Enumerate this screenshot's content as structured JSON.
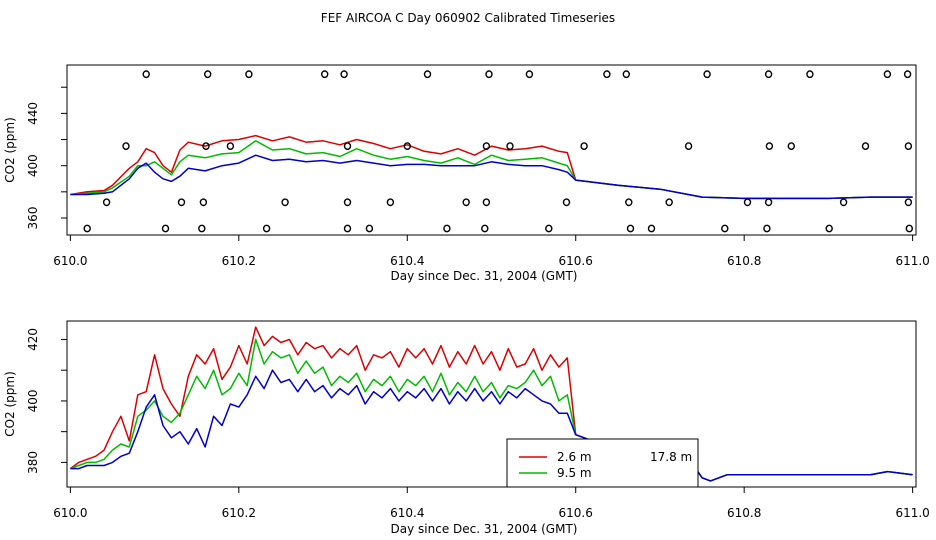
{
  "title": "FEF AIRCOA C  Day 060902  Calibrated Timeseries",
  "colors": {
    "red": "#dd0000",
    "green": "#00bb00",
    "blue": "#0000cc",
    "axis": "#000000"
  },
  "chart_data": [
    {
      "type": "line",
      "name": "top-panel",
      "xlabel": "Day since Dec. 31, 2004 (GMT)",
      "ylabel": "CO2 (ppm)",
      "xlim": [
        609.996,
        611.004
      ],
      "ylim": [
        347,
        477
      ],
      "x_ticks": [
        610.0,
        610.2,
        610.4,
        610.6,
        610.8,
        611.0
      ],
      "x_tick_labels": [
        "610.0",
        "610.2",
        "610.4",
        "610.6",
        "610.8",
        "611.0"
      ],
      "y_ticks": [
        360,
        380,
        400,
        420,
        440,
        460
      ],
      "y_tick_labels": [
        "360",
        "",
        "400",
        "",
        "440",
        ""
      ],
      "series": [
        {
          "name": "2.6 m",
          "color": "red",
          "x": [
            610.0,
            610.02,
            610.04,
            610.05,
            610.07,
            610.08,
            610.09,
            610.1,
            610.11,
            610.12,
            610.13,
            610.14,
            610.16,
            610.18,
            610.2,
            610.22,
            610.24,
            610.26,
            610.28,
            610.3,
            610.32,
            610.34,
            610.36,
            610.38,
            610.4,
            610.42,
            610.44,
            610.46,
            610.48,
            610.5,
            610.52,
            610.54,
            610.56,
            610.58,
            610.59,
            610.6,
            610.65,
            610.7,
            610.75,
            610.8,
            610.85,
            610.9,
            610.95,
            611.0
          ],
          "y": [
            378,
            380,
            381,
            385,
            398,
            403,
            413,
            410,
            400,
            395,
            412,
            418,
            415,
            419,
            420,
            423,
            419,
            422,
            418,
            419,
            416,
            420,
            417,
            413,
            416,
            411,
            409,
            413,
            408,
            415,
            412,
            413,
            415,
            411,
            410,
            389,
            385,
            382,
            376,
            375,
            375,
            375,
            376,
            376
          ]
        },
        {
          "name": "9.5 m",
          "color": "green",
          "x": [
            610.0,
            610.02,
            610.04,
            610.05,
            610.07,
            610.08,
            610.09,
            610.1,
            610.11,
            610.12,
            610.13,
            610.14,
            610.16,
            610.18,
            610.2,
            610.22,
            610.24,
            610.26,
            610.28,
            610.3,
            610.32,
            610.34,
            610.36,
            610.38,
            610.4,
            610.42,
            610.44,
            610.46,
            610.48,
            610.5,
            610.52,
            610.54,
            610.56,
            610.58,
            610.59,
            610.6,
            610.65,
            610.7,
            610.75,
            610.8,
            610.85,
            610.9,
            610.95,
            611.0
          ],
          "y": [
            378,
            379,
            380,
            383,
            392,
            400,
            400,
            403,
            398,
            393,
            403,
            408,
            406,
            409,
            410,
            419,
            412,
            413,
            409,
            410,
            407,
            413,
            408,
            405,
            407,
            404,
            402,
            406,
            401,
            408,
            404,
            405,
            406,
            402,
            400,
            389,
            385,
            382,
            376,
            375,
            375,
            375,
            376,
            376
          ]
        },
        {
          "name": "17.8 m",
          "color": "blue",
          "x": [
            610.0,
            610.02,
            610.04,
            610.05,
            610.07,
            610.08,
            610.09,
            610.1,
            610.11,
            610.12,
            610.13,
            610.14,
            610.16,
            610.18,
            610.2,
            610.22,
            610.24,
            610.26,
            610.28,
            610.3,
            610.32,
            610.34,
            610.36,
            610.38,
            610.4,
            610.42,
            610.44,
            610.46,
            610.48,
            610.5,
            610.52,
            610.54,
            610.56,
            610.58,
            610.59,
            610.6,
            610.65,
            610.7,
            610.75,
            610.8,
            610.85,
            610.9,
            610.95,
            611.0
          ],
          "y": [
            378,
            378,
            379,
            380,
            390,
            398,
            402,
            395,
            390,
            388,
            392,
            398,
            396,
            400,
            402,
            408,
            404,
            405,
            403,
            404,
            402,
            404,
            402,
            400,
            401,
            401,
            400,
            400,
            400,
            403,
            401,
            400,
            400,
            397,
            395,
            389,
            385,
            382,
            376,
            375,
            375,
            375,
            376,
            376
          ]
        }
      ],
      "points": {
        "x": [
          610.09,
          610.163,
          610.212,
          610.302,
          610.325,
          610.424,
          610.497,
          610.545,
          610.637,
          610.66,
          610.756,
          610.829,
          610.878,
          610.97,
          610.994,
          610.066,
          610.161,
          610.19,
          610.329,
          610.4,
          610.494,
          610.522,
          610.61,
          610.734,
          610.83,
          610.856,
          610.944,
          610.995,
          610.043,
          610.132,
          610.158,
          610.255,
          610.329,
          610.38,
          610.47,
          610.494,
          610.589,
          610.663,
          610.711,
          610.804,
          610.829,
          610.918,
          610.995,
          610.02,
          610.113,
          610.156,
          610.233,
          610.329,
          610.355,
          610.447,
          610.492,
          610.568,
          610.665,
          610.69,
          610.777,
          610.827,
          610.901,
          610.996
        ],
        "y": [
          470,
          470,
          470,
          470,
          470,
          470,
          470,
          470,
          470,
          470,
          470,
          470,
          470,
          470,
          470,
          415,
          415,
          415,
          415,
          415,
          415,
          415,
          415,
          415,
          415,
          415,
          415,
          415,
          372,
          372,
          372,
          372,
          372,
          372,
          372,
          372,
          372,
          372,
          372,
          372,
          372,
          372,
          372,
          352,
          352,
          352,
          352,
          352,
          352,
          352,
          352,
          352,
          352,
          352,
          352,
          352,
          352,
          352
        ]
      }
    },
    {
      "type": "line",
      "name": "bottom-panel",
      "xlabel": "Day since Dec. 31, 2004 (GMT)",
      "ylabel": "CO2 (ppm)",
      "xlim": [
        609.996,
        611.004
      ],
      "ylim": [
        372,
        426
      ],
      "x_ticks": [
        610.0,
        610.2,
        610.4,
        610.6,
        610.8,
        611.0
      ],
      "x_tick_labels": [
        "610.0",
        "610.2",
        "610.4",
        "610.6",
        "610.8",
        "611.0"
      ],
      "y_ticks": [
        380,
        390,
        400,
        410,
        420
      ],
      "y_tick_labels": [
        "380",
        "",
        "400",
        "",
        "420"
      ],
      "legend": {
        "position": "bottom-center",
        "entries": [
          {
            "label": "2.6 m",
            "color": "red"
          },
          {
            "label": "9.5 m",
            "color": "green"
          },
          {
            "label": "17.8 m",
            "color": "blue"
          }
        ]
      },
      "series": [
        {
          "name": "2.6 m",
          "color": "red",
          "x": [
            610.0,
            610.01,
            610.02,
            610.03,
            610.04,
            610.05,
            610.06,
            610.07,
            610.08,
            610.09,
            610.1,
            610.11,
            610.12,
            610.13,
            610.14,
            610.15,
            610.16,
            610.17,
            610.18,
            610.19,
            610.2,
            610.21,
            610.22,
            610.23,
            610.24,
            610.25,
            610.26,
            610.27,
            610.28,
            610.29,
            610.3,
            610.31,
            610.32,
            610.33,
            610.34,
            610.35,
            610.36,
            610.37,
            610.38,
            610.39,
            610.4,
            610.41,
            610.42,
            610.43,
            610.44,
            610.45,
            610.46,
            610.47,
            610.48,
            610.49,
            610.5,
            610.51,
            610.52,
            610.53,
            610.54,
            610.55,
            610.56,
            610.57,
            610.58,
            610.59,
            610.6,
            610.61,
            610.62,
            610.63,
            610.64,
            610.65,
            610.66,
            610.67,
            610.68,
            610.69,
            610.7,
            610.71,
            610.72,
            610.73,
            610.74,
            610.75,
            610.76,
            610.77,
            610.78,
            610.8,
            610.82,
            610.85,
            610.88,
            610.9,
            610.92,
            610.95,
            610.97,
            611.0
          ],
          "y": [
            378,
            380,
            381,
            382,
            384,
            390,
            395,
            387,
            402,
            403,
            415,
            404,
            399,
            395,
            408,
            415,
            412,
            417,
            407,
            411,
            418,
            412,
            424,
            418,
            421,
            419,
            420,
            415,
            419,
            417,
            418,
            414,
            417,
            415,
            418,
            410,
            415,
            414,
            416,
            411,
            417,
            414,
            417,
            412,
            418,
            411,
            416,
            412,
            418,
            412,
            416,
            410,
            417,
            411,
            412,
            417,
            410,
            415,
            411,
            414,
            389,
            388,
            387,
            386,
            385,
            384,
            384,
            383,
            383,
            382,
            382,
            382,
            381,
            381,
            379,
            375,
            374,
            375,
            376,
            376,
            376,
            376,
            376,
            376,
            376,
            376,
            377,
            376
          ]
        },
        {
          "name": "9.5 m",
          "color": "green",
          "x": [
            610.0,
            610.01,
            610.02,
            610.03,
            610.04,
            610.05,
            610.06,
            610.07,
            610.08,
            610.09,
            610.1,
            610.11,
            610.12,
            610.13,
            610.14,
            610.15,
            610.16,
            610.17,
            610.18,
            610.19,
            610.2,
            610.21,
            610.22,
            610.23,
            610.24,
            610.25,
            610.26,
            610.27,
            610.28,
            610.29,
            610.3,
            610.31,
            610.32,
            610.33,
            610.34,
            610.35,
            610.36,
            610.37,
            610.38,
            610.39,
            610.4,
            610.41,
            610.42,
            610.43,
            610.44,
            610.45,
            610.46,
            610.47,
            610.48,
            610.49,
            610.5,
            610.51,
            610.52,
            610.53,
            610.54,
            610.55,
            610.56,
            610.57,
            610.58,
            610.59,
            610.6,
            610.61,
            610.62,
            610.63,
            610.64,
            610.65,
            610.66,
            610.67,
            610.68,
            610.69,
            610.7,
            610.71,
            610.72,
            610.73,
            610.74,
            610.75,
            610.76,
            610.77,
            610.78,
            610.8,
            610.82,
            610.85,
            610.88,
            610.9,
            610.92,
            610.95,
            610.97,
            611.0
          ],
          "y": [
            378,
            379,
            380,
            380,
            381,
            384,
            386,
            385,
            395,
            397,
            400,
            395,
            393,
            396,
            402,
            408,
            404,
            410,
            402,
            404,
            409,
            405,
            420,
            412,
            416,
            414,
            415,
            409,
            413,
            409,
            411,
            405,
            408,
            406,
            409,
            403,
            407,
            405,
            408,
            403,
            407,
            405,
            408,
            403,
            409,
            402,
            406,
            403,
            408,
            403,
            406,
            401,
            405,
            404,
            406,
            410,
            405,
            408,
            400,
            402,
            389,
            388,
            387,
            386,
            385,
            384,
            384,
            383,
            383,
            382,
            382,
            382,
            381,
            381,
            379,
            375,
            374,
            375,
            376,
            376,
            376,
            376,
            376,
            376,
            376,
            376,
            377,
            376
          ]
        },
        {
          "name": "17.8 m",
          "color": "blue",
          "x": [
            610.0,
            610.01,
            610.02,
            610.03,
            610.04,
            610.05,
            610.06,
            610.07,
            610.08,
            610.09,
            610.1,
            610.11,
            610.12,
            610.13,
            610.14,
            610.15,
            610.16,
            610.17,
            610.18,
            610.19,
            610.2,
            610.21,
            610.22,
            610.23,
            610.24,
            610.25,
            610.26,
            610.27,
            610.28,
            610.29,
            610.3,
            610.31,
            610.32,
            610.33,
            610.34,
            610.35,
            610.36,
            610.37,
            610.38,
            610.39,
            610.4,
            610.41,
            610.42,
            610.43,
            610.44,
            610.45,
            610.46,
            610.47,
            610.48,
            610.49,
            610.5,
            610.51,
            610.52,
            610.53,
            610.54,
            610.55,
            610.56,
            610.57,
            610.58,
            610.59,
            610.6,
            610.61,
            610.62,
            610.63,
            610.64,
            610.65,
            610.66,
            610.67,
            610.68,
            610.69,
            610.7,
            610.71,
            610.72,
            610.73,
            610.74,
            610.75,
            610.76,
            610.77,
            610.78,
            610.8,
            610.82,
            610.85,
            610.88,
            610.9,
            610.92,
            610.95,
            610.97,
            611.0
          ],
          "y": [
            378,
            378,
            379,
            379,
            379,
            380,
            382,
            383,
            390,
            398,
            402,
            392,
            388,
            390,
            386,
            391,
            385,
            395,
            392,
            399,
            398,
            402,
            408,
            404,
            410,
            406,
            407,
            403,
            407,
            403,
            405,
            401,
            404,
            402,
            405,
            399,
            403,
            401,
            404,
            400,
            403,
            401,
            404,
            400,
            404,
            399,
            403,
            400,
            404,
            400,
            403,
            399,
            403,
            401,
            404,
            402,
            400,
            399,
            396,
            396,
            389,
            388,
            387,
            386,
            385,
            384,
            384,
            383,
            383,
            382,
            382,
            382,
            381,
            381,
            379,
            375,
            374,
            375,
            376,
            376,
            376,
            376,
            376,
            376,
            376,
            376,
            377,
            376
          ]
        }
      ]
    }
  ]
}
